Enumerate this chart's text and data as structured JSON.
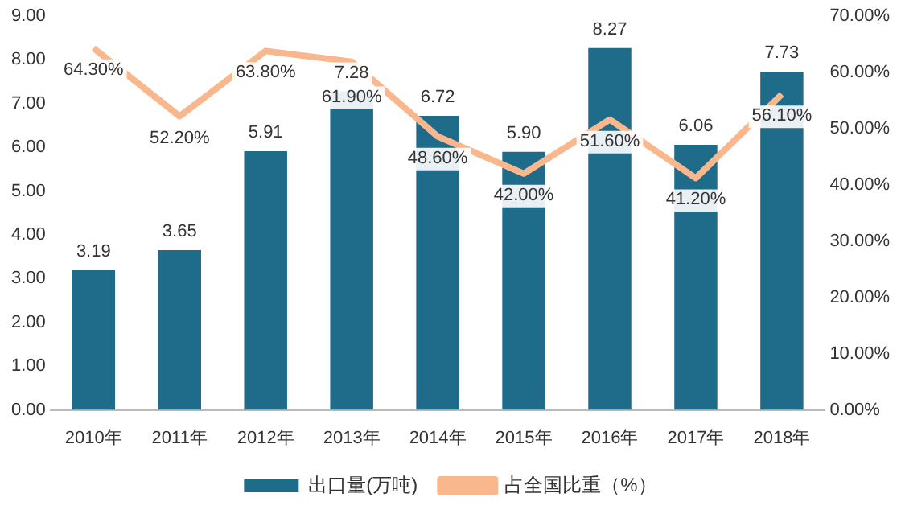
{
  "chart_data": {
    "type": "bar",
    "categories": [
      "2010年",
      "2011年",
      "2012年",
      "2013年",
      "2014年",
      "2015年",
      "2016年",
      "2017年",
      "2018年"
    ],
    "series": [
      {
        "name": "出口量(万吨)",
        "color": "#1f6b8a",
        "values": [
          3.19,
          3.65,
          5.91,
          7.28,
          6.72,
          5.9,
          8.27,
          6.06,
          7.73
        ],
        "value_labels": [
          "3.19",
          "3.65",
          "5.91",
          "7.28",
          "6.72",
          "5.90",
          "8.27",
          "6.06",
          "7.73"
        ]
      },
      {
        "name": "占全国比重（%）",
        "type": "line",
        "axis": "y2",
        "color": "#f9b78d",
        "values": [
          64.3,
          52.2,
          63.8,
          61.9,
          48.6,
          42.0,
          51.6,
          41.2,
          56.1
        ],
        "value_labels": [
          "64.30%",
          "52.20%",
          "63.80%",
          "61.90%",
          "48.60%",
          "42.00%",
          "51.60%",
          "41.20%",
          "56.10%"
        ]
      }
    ],
    "ylim": [
      0,
      9
    ],
    "yticks": [
      {
        "value": 0,
        "label": "0.00"
      },
      {
        "value": 1,
        "label": "1.00"
      },
      {
        "value": 2,
        "label": "2.00"
      },
      {
        "value": 3,
        "label": "3.00"
      },
      {
        "value": 4,
        "label": "4.00"
      },
      {
        "value": 5,
        "label": "5.00"
      },
      {
        "value": 6,
        "label": "6.00"
      },
      {
        "value": 7,
        "label": "7.00"
      },
      {
        "value": 8,
        "label": "8.00"
      },
      {
        "value": 9,
        "label": "9.00"
      }
    ],
    "y2lim": [
      0,
      70
    ],
    "y2ticks": [
      {
        "value": 0,
        "label": "0.00%"
      },
      {
        "value": 10,
        "label": "10.00%"
      },
      {
        "value": 20,
        "label": "20.00%"
      },
      {
        "value": 30,
        "label": "30.00%"
      },
      {
        "value": 40,
        "label": "40.00%"
      },
      {
        "value": 50,
        "label": "50.00%"
      },
      {
        "value": 60,
        "label": "60.00%"
      },
      {
        "value": 70,
        "label": "70.00%"
      }
    ],
    "grid": false,
    "legend": "bottom",
    "line_style": "solid",
    "marker": "none"
  }
}
